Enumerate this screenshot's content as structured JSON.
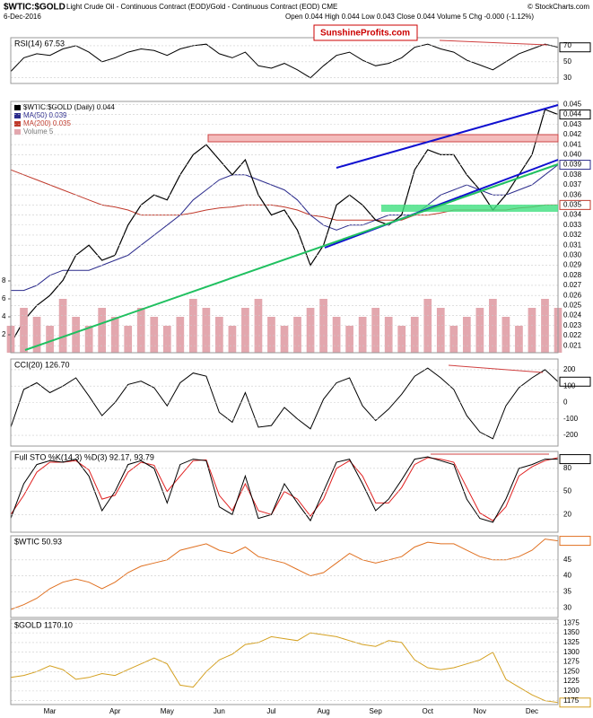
{
  "header": {
    "title": "$WTIC:$GOLD",
    "subtitle": "Light Crude Oil - Continuous Contract (EOD)/Gold - Continuous Contract (EOD) CME",
    "date": "6-Dec-2016",
    "quote": "Open 0.044 High 0.044 Low 0.043 Close 0.044 Volume 5 Chg -0.000 (-1.12%)",
    "credit": "© StockCharts.com",
    "watermark": "SunshineProfits.com"
  },
  "chart_data": [
    {
      "type": "line",
      "title": "RSI(14) 67.53",
      "ylim": [
        23,
        80
      ],
      "yticks": [
        30,
        50,
        70
      ],
      "series": [
        {
          "color": "#000000",
          "badge": "67.53",
          "values": [
            38,
            55,
            60,
            58,
            66,
            70,
            62,
            50,
            55,
            62,
            66,
            64,
            58,
            66,
            70,
            72,
            60,
            55,
            62,
            45,
            42,
            48,
            40,
            30,
            45,
            58,
            62,
            52,
            45,
            48,
            55,
            68,
            72,
            66,
            62,
            52,
            46,
            40,
            50,
            60,
            66,
            72,
            68
          ]
        }
      ]
    },
    {
      "type": "line",
      "ylim": [
        0.0203,
        0.0453
      ],
      "yticks": [
        0.021,
        0.022,
        0.023,
        0.024,
        0.025,
        0.026,
        0.027,
        0.028,
        0.029,
        {
          "value": 0.03,
          "label": "0.030"
        },
        0.031,
        0.032,
        0.033,
        0.034,
        0.035,
        0.036,
        0.037,
        0.038,
        0.039,
        {
          "value": 0.04,
          "label": "0.040"
        },
        0.041,
        0.042,
        0.043,
        0.044,
        0.045
      ],
      "y2lim": [
        0,
        28
      ],
      "y2ticks": [
        2,
        4,
        6,
        8
      ],
      "series": [
        {
          "name": "$WTIC:$GOLD (Daily) 0.044",
          "color": "#000000",
          "badge": "0.044",
          "values": [
            0.0212,
            0.0235,
            0.025,
            0.026,
            0.0275,
            0.03,
            0.031,
            0.0295,
            0.03,
            0.033,
            0.035,
            0.036,
            0.0355,
            0.038,
            0.04,
            0.041,
            0.0395,
            0.038,
            0.0395,
            0.036,
            0.034,
            0.0345,
            0.0325,
            0.029,
            0.031,
            0.035,
            0.036,
            0.035,
            0.0335,
            0.033,
            0.034,
            0.0385,
            0.0405,
            0.04,
            0.04,
            0.038,
            0.0365,
            0.0345,
            0.036,
            0.038,
            0.04,
            0.0445,
            0.044
          ]
        },
        {
          "name": "MA(50) 0.039",
          "color": "#2b2b8c",
          "badge": "0.039",
          "values": [
            0.0265,
            0.0265,
            0.027,
            0.028,
            0.0285,
            0.0285,
            0.0285,
            0.029,
            0.0295,
            0.03,
            0.031,
            0.032,
            0.033,
            0.034,
            0.0355,
            0.0365,
            0.0375,
            0.038,
            0.038,
            0.0375,
            0.037,
            0.0365,
            0.0355,
            0.034,
            0.033,
            0.0325,
            0.033,
            0.033,
            0.0335,
            0.034,
            0.034,
            0.034,
            0.035,
            0.036,
            0.0365,
            0.037,
            0.0365,
            0.036,
            0.036,
            0.0365,
            0.037,
            0.038,
            0.039
          ]
        },
        {
          "name": "MA(200) 0.035",
          "color": "#c0392b",
          "badge": "0.035",
          "values": [
            0.0385,
            0.038,
            0.0375,
            0.037,
            0.0365,
            0.036,
            0.0355,
            0.035,
            0.0348,
            0.0345,
            0.034,
            0.034,
            0.034,
            0.034,
            0.0342,
            0.0345,
            0.0347,
            0.0348,
            0.035,
            0.035,
            0.035,
            0.0348,
            0.0345,
            0.034,
            0.0338,
            0.0335,
            0.0335,
            0.0335,
            0.0335,
            0.0335,
            0.0335,
            0.034,
            0.034,
            0.0342,
            0.0345,
            0.0345,
            0.0345,
            0.0345,
            0.0345,
            0.0347,
            0.0348,
            0.035,
            0.035
          ]
        },
        {
          "name": "Volume 5",
          "color": "#e3a7ae",
          "type": "bar",
          "axis": "y2",
          "values": [
            3,
            5,
            4,
            3,
            6,
            4,
            3,
            5,
            4,
            3,
            5,
            4,
            3,
            4,
            6,
            5,
            4,
            3,
            5,
            6,
            4,
            3,
            4,
            5,
            6,
            4,
            3,
            4,
            5,
            4,
            3,
            4,
            6,
            5,
            3,
            4,
            5,
            6,
            4,
            3,
            5,
            6,
            5
          ]
        }
      ]
    },
    {
      "type": "line",
      "title": "CCI(20) 126.70",
      "ylim": [
        -265,
        265
      ],
      "yticks": [
        200,
        100,
        0,
        -100,
        -200
      ],
      "series": [
        {
          "color": "#000000",
          "badge": "126.70",
          "values": [
            -150,
            80,
            120,
            60,
            100,
            150,
            40,
            -80,
            0,
            110,
            130,
            90,
            -20,
            120,
            180,
            160,
            -60,
            -120,
            60,
            -150,
            -140,
            -30,
            -100,
            -160,
            20,
            120,
            150,
            -20,
            -110,
            -40,
            50,
            160,
            210,
            150,
            80,
            -80,
            -180,
            -220,
            -20,
            90,
            150,
            200,
            127
          ]
        }
      ]
    },
    {
      "type": "line",
      "title": "Full STO %K(14,3) %D(3) 92.17, 93.79",
      "ylim": [
        -3,
        102
      ],
      "yticks": [
        20,
        50,
        80
      ],
      "series": [
        {
          "color": "#000000",
          "badge": "92.17",
          "values": [
            15,
            60,
            85,
            90,
            88,
            92,
            70,
            25,
            50,
            85,
            90,
            80,
            35,
            85,
            92,
            90,
            30,
            20,
            70,
            15,
            20,
            60,
            35,
            12,
            50,
            88,
            92,
            60,
            25,
            40,
            65,
            92,
            95,
            90,
            85,
            40,
            15,
            10,
            40,
            80,
            85,
            92,
            92
          ]
        },
        {
          "color": "#e02020",
          "values": [
            20,
            45,
            75,
            88,
            88,
            90,
            78,
            40,
            45,
            75,
            88,
            84,
            50,
            70,
            90,
            91,
            45,
            25,
            60,
            25,
            20,
            50,
            40,
            18,
            40,
            80,
            90,
            70,
            35,
            35,
            55,
            85,
            94,
            92,
            88,
            55,
            22,
            12,
            30,
            70,
            82,
            90,
            94
          ]
        }
      ]
    },
    {
      "type": "line",
      "title": "$WTIC 50.93",
      "ylim": [
        27,
        52.5
      ],
      "yticks": [
        30,
        35,
        40,
        45
      ],
      "series": [
        {
          "color": "#e07020",
          "badge": "50.93",
          "values": [
            29.5,
            31,
            33,
            36,
            38,
            39,
            38,
            36,
            38,
            41,
            43,
            44,
            45,
            48,
            49,
            50,
            48,
            47,
            49,
            46,
            45,
            44,
            42,
            40,
            41,
            44,
            47,
            45,
            44,
            45,
            46,
            49,
            50.5,
            50,
            50,
            48,
            46,
            45,
            45,
            46,
            48,
            51.5,
            50.93
          ]
        }
      ]
    },
    {
      "type": "line",
      "title": "$GOLD 1170.10",
      "ylim": [
        1165,
        1385
      ],
      "yticks": [
        1175,
        1200,
        1225,
        1250,
        1275,
        1300,
        1325,
        1350,
        1375
      ],
      "categories": [
        null,
        null,
        null,
        "Mar",
        null,
        null,
        null,
        null,
        "Apr",
        null,
        null,
        null,
        "May",
        null,
        null,
        null,
        "Jun",
        null,
        null,
        null,
        "Jul",
        null,
        null,
        null,
        "Aug",
        null,
        null,
        null,
        "Sep",
        null,
        null,
        null,
        "Oct",
        null,
        null,
        null,
        "Nov",
        null,
        null,
        null,
        "Dec",
        null,
        null
      ],
      "series": [
        {
          "color": "#d4a020",
          "badge": "1170.10",
          "values": [
            1235,
            1240,
            1250,
            1265,
            1255,
            1230,
            1235,
            1245,
            1240,
            1255,
            1270,
            1285,
            1270,
            1215,
            1210,
            1250,
            1280,
            1295,
            1320,
            1325,
            1340,
            1335,
            1330,
            1350,
            1345,
            1340,
            1330,
            1320,
            1315,
            1330,
            1325,
            1280,
            1260,
            1255,
            1260,
            1270,
            1280,
            1300,
            1230,
            1210,
            1190,
            1175,
            1170.1
          ]
        }
      ]
    }
  ]
}
